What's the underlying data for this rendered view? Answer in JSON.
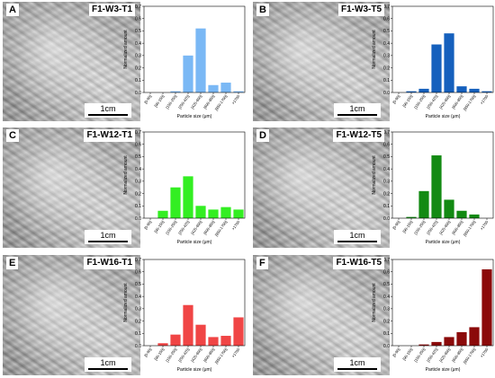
{
  "panels": [
    {
      "letter": "A",
      "sample": "F1-W3-T1",
      "scale": "1cm"
    },
    {
      "letter": "B",
      "sample": "F1-W3-T5",
      "scale": "1cm"
    },
    {
      "letter": "C",
      "sample": "F1-W12-T1",
      "scale": "1cm"
    },
    {
      "letter": "D",
      "sample": "F1-W12-T5",
      "scale": "1cm"
    },
    {
      "letter": "E",
      "sample": "F1-W16-T1",
      "scale": "1cm"
    },
    {
      "letter": "F",
      "sample": "F1-W16-T5",
      "scale": "1cm"
    }
  ],
  "chart_data": [
    {
      "type": "bar",
      "categories": [
        "[0-90]",
        "[90-150]",
        "[150-250]",
        "[250-425]",
        "[425-600]",
        "[600-850]",
        "[850-1700]",
        ">1700"
      ],
      "values": [
        0.0,
        0.0,
        0.01,
        0.3,
        0.52,
        0.06,
        0.08,
        0.01
      ],
      "xlabel": "Particle size (μm)",
      "ylabel": "Normalized amount",
      "ylim": [
        0,
        0.7
      ],
      "yticks": [
        "0.0",
        "0.1",
        "0.2",
        "0.3",
        "0.4",
        "0.5",
        "0.6",
        "0.7"
      ],
      "color": "#7ab8f5"
    },
    {
      "type": "bar",
      "categories": [
        "[0-90]",
        "[90-150]",
        "[150-250]",
        "[250-425]",
        "[425-600]",
        "[600-850]",
        "[850-1700]",
        ">1700"
      ],
      "values": [
        0.0,
        0.01,
        0.03,
        0.39,
        0.48,
        0.05,
        0.03,
        0.01
      ],
      "xlabel": "Particle size (μm)",
      "ylabel": "Normalized amount",
      "ylim": [
        0,
        0.7
      ],
      "yticks": [
        "0.0",
        "0.1",
        "0.2",
        "0.3",
        "0.4",
        "0.5",
        "0.6",
        "0.7"
      ],
      "color": "#1560bd"
    },
    {
      "type": "bar",
      "categories": [
        "[0-90]",
        "[90-150]",
        "[150-250]",
        "[250-425]",
        "[425-600]",
        "[600-850]",
        "[850-1700]",
        ">1700"
      ],
      "values": [
        0.0,
        0.06,
        0.25,
        0.34,
        0.1,
        0.07,
        0.09,
        0.07
      ],
      "xlabel": "Particle size (μm)",
      "ylabel": "Normalized amount",
      "ylim": [
        0,
        0.7
      ],
      "yticks": [
        "0.0",
        "0.1",
        "0.2",
        "0.3",
        "0.4",
        "0.5",
        "0.6",
        "0.7"
      ],
      "color": "#33ee22"
    },
    {
      "type": "bar",
      "categories": [
        "[0-90]",
        "[90-150]",
        "[150-250]",
        "[250-425]",
        "[425-600]",
        "[600-850]",
        "[850-1700]",
        ">1700"
      ],
      "values": [
        0.0,
        0.01,
        0.22,
        0.51,
        0.15,
        0.06,
        0.03,
        0.0
      ],
      "xlabel": "Particle size (μm)",
      "ylabel": "Normalized amount",
      "ylim": [
        0,
        0.7
      ],
      "yticks": [
        "0.0",
        "0.1",
        "0.2",
        "0.3",
        "0.4",
        "0.5",
        "0.6",
        "0.7"
      ],
      "color": "#138a13"
    },
    {
      "type": "bar",
      "categories": [
        "[0-90]",
        "[90-150]",
        "[150-250]",
        "[250-425]",
        "[425-600]",
        "[600-850]",
        "[850-1700]",
        ">1700"
      ],
      "values": [
        0.0,
        0.02,
        0.09,
        0.33,
        0.17,
        0.07,
        0.08,
        0.23
      ],
      "xlabel": "Particle size (μm)",
      "ylabel": "Normalized amount",
      "ylim": [
        0,
        0.7
      ],
      "yticks": [
        "0.0",
        "0.1",
        "0.2",
        "0.3",
        "0.4",
        "0.5",
        "0.6",
        "0.7"
      ],
      "color": "#f04545"
    },
    {
      "type": "bar",
      "categories": [
        "[0-90]",
        "[90-150]",
        "[150-250]",
        "[250-425]",
        "[425-600]",
        "[600-850]",
        "[850-1700]",
        ">1700"
      ],
      "values": [
        0.0,
        0.0,
        0.01,
        0.03,
        0.07,
        0.11,
        0.15,
        0.62
      ],
      "xlabel": "Particle size (μm)",
      "ylabel": "Normalized amount",
      "ylim": [
        0,
        0.7
      ],
      "yticks": [
        "0.0",
        "0.1",
        "0.2",
        "0.3",
        "0.4",
        "0.5",
        "0.6",
        "0.7"
      ],
      "color": "#8b0a0a"
    }
  ]
}
